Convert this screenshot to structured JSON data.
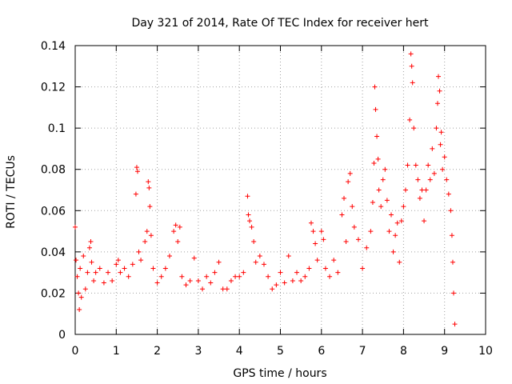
{
  "chart_data": {
    "type": "scatter",
    "title": "Day 321 of 2014, Rate Of TEC Index for receiver hert",
    "xlabel": "GPS time / hours",
    "ylabel": "ROTI / TECUs",
    "xlim": [
      0,
      10
    ],
    "ylim": [
      0,
      0.14
    ],
    "xticks": [
      0,
      1,
      2,
      3,
      4,
      5,
      6,
      7,
      8,
      9,
      10
    ],
    "yticks": [
      0,
      0.02,
      0.04,
      0.06,
      0.08,
      0.1,
      0.12,
      0.14
    ],
    "xtick_labels": [
      "0",
      "1",
      "2",
      "3",
      "4",
      "5",
      "6",
      "7",
      "8",
      "9",
      "10"
    ],
    "ytick_labels": [
      "0",
      "0.02",
      "0.04",
      "0.06",
      "0.08",
      "0.1",
      "0.12",
      "0.14"
    ],
    "grid": true,
    "marker": "+",
    "color": "#ff0000",
    "series": [
      {
        "name": "ROTI",
        "points": [
          [
            0.0,
            0.052
          ],
          [
            0.02,
            0.036
          ],
          [
            0.05,
            0.028
          ],
          [
            0.08,
            0.02
          ],
          [
            0.1,
            0.012
          ],
          [
            0.12,
            0.032
          ],
          [
            0.15,
            0.018
          ],
          [
            0.2,
            0.038
          ],
          [
            0.25,
            0.022
          ],
          [
            0.3,
            0.03
          ],
          [
            0.35,
            0.042
          ],
          [
            0.38,
            0.045
          ],
          [
            0.4,
            0.035
          ],
          [
            0.45,
            0.026
          ],
          [
            0.5,
            0.03
          ],
          [
            0.6,
            0.032
          ],
          [
            0.7,
            0.025
          ],
          [
            0.8,
            0.03
          ],
          [
            0.9,
            0.026
          ],
          [
            1.0,
            0.034
          ],
          [
            1.05,
            0.036
          ],
          [
            1.1,
            0.03
          ],
          [
            1.2,
            0.032
          ],
          [
            1.3,
            0.028
          ],
          [
            1.4,
            0.034
          ],
          [
            1.48,
            0.068
          ],
          [
            1.5,
            0.081
          ],
          [
            1.52,
            0.079
          ],
          [
            1.55,
            0.04
          ],
          [
            1.6,
            0.036
          ],
          [
            1.7,
            0.045
          ],
          [
            1.75,
            0.05
          ],
          [
            1.78,
            0.074
          ],
          [
            1.8,
            0.071
          ],
          [
            1.82,
            0.062
          ],
          [
            1.85,
            0.048
          ],
          [
            1.9,
            0.032
          ],
          [
            2.0,
            0.025
          ],
          [
            2.1,
            0.028
          ],
          [
            2.2,
            0.032
          ],
          [
            2.3,
            0.038
          ],
          [
            2.4,
            0.05
          ],
          [
            2.45,
            0.053
          ],
          [
            2.5,
            0.045
          ],
          [
            2.55,
            0.052
          ],
          [
            2.6,
            0.028
          ],
          [
            2.7,
            0.024
          ],
          [
            2.8,
            0.026
          ],
          [
            2.9,
            0.037
          ],
          [
            3.0,
            0.026
          ],
          [
            3.1,
            0.022
          ],
          [
            3.2,
            0.028
          ],
          [
            3.3,
            0.025
          ],
          [
            3.4,
            0.03
          ],
          [
            3.5,
            0.035
          ],
          [
            3.6,
            0.022
          ],
          [
            3.7,
            0.022
          ],
          [
            3.8,
            0.026
          ],
          [
            3.9,
            0.028
          ],
          [
            4.0,
            0.028
          ],
          [
            4.1,
            0.03
          ],
          [
            4.2,
            0.067
          ],
          [
            4.22,
            0.058
          ],
          [
            4.25,
            0.055
          ],
          [
            4.3,
            0.052
          ],
          [
            4.35,
            0.045
          ],
          [
            4.4,
            0.035
          ],
          [
            4.5,
            0.038
          ],
          [
            4.6,
            0.034
          ],
          [
            4.7,
            0.028
          ],
          [
            4.8,
            0.022
          ],
          [
            4.9,
            0.024
          ],
          [
            5.0,
            0.03
          ],
          [
            5.1,
            0.025
          ],
          [
            5.2,
            0.038
          ],
          [
            5.3,
            0.026
          ],
          [
            5.4,
            0.03
          ],
          [
            5.5,
            0.026
          ],
          [
            5.6,
            0.028
          ],
          [
            5.7,
            0.032
          ],
          [
            5.75,
            0.054
          ],
          [
            5.8,
            0.05
          ],
          [
            5.85,
            0.044
          ],
          [
            5.9,
            0.036
          ],
          [
            6.0,
            0.05
          ],
          [
            6.05,
            0.046
          ],
          [
            6.1,
            0.032
          ],
          [
            6.2,
            0.028
          ],
          [
            6.3,
            0.036
          ],
          [
            6.4,
            0.03
          ],
          [
            6.5,
            0.058
          ],
          [
            6.55,
            0.066
          ],
          [
            6.6,
            0.045
          ],
          [
            6.65,
            0.074
          ],
          [
            6.7,
            0.078
          ],
          [
            6.75,
            0.062
          ],
          [
            6.8,
            0.052
          ],
          [
            6.9,
            0.046
          ],
          [
            7.0,
            0.032
          ],
          [
            7.1,
            0.042
          ],
          [
            7.2,
            0.05
          ],
          [
            7.25,
            0.064
          ],
          [
            7.28,
            0.083
          ],
          [
            7.3,
            0.12
          ],
          [
            7.32,
            0.109
          ],
          [
            7.35,
            0.096
          ],
          [
            7.38,
            0.085
          ],
          [
            7.4,
            0.07
          ],
          [
            7.45,
            0.062
          ],
          [
            7.5,
            0.075
          ],
          [
            7.55,
            0.08
          ],
          [
            7.6,
            0.065
          ],
          [
            7.65,
            0.05
          ],
          [
            7.7,
            0.058
          ],
          [
            7.75,
            0.04
          ],
          [
            7.8,
            0.048
          ],
          [
            7.85,
            0.054
          ],
          [
            7.9,
            0.035
          ],
          [
            7.95,
            0.055
          ],
          [
            8.0,
            0.062
          ],
          [
            8.05,
            0.07
          ],
          [
            8.1,
            0.082
          ],
          [
            8.15,
            0.104
          ],
          [
            8.18,
            0.136
          ],
          [
            8.2,
            0.13
          ],
          [
            8.22,
            0.122
          ],
          [
            8.25,
            0.1
          ],
          [
            8.3,
            0.082
          ],
          [
            8.35,
            0.075
          ],
          [
            8.4,
            0.066
          ],
          [
            8.45,
            0.07
          ],
          [
            8.5,
            0.055
          ],
          [
            8.55,
            0.07
          ],
          [
            8.6,
            0.082
          ],
          [
            8.65,
            0.075
          ],
          [
            8.7,
            0.09
          ],
          [
            8.75,
            0.078
          ],
          [
            8.8,
            0.1
          ],
          [
            8.83,
            0.112
          ],
          [
            8.85,
            0.125
          ],
          [
            8.88,
            0.118
          ],
          [
            8.9,
            0.092
          ],
          [
            8.92,
            0.098
          ],
          [
            8.95,
            0.08
          ],
          [
            9.0,
            0.086
          ],
          [
            9.05,
            0.075
          ],
          [
            9.1,
            0.068
          ],
          [
            9.15,
            0.06
          ],
          [
            9.18,
            0.048
          ],
          [
            9.2,
            0.035
          ],
          [
            9.22,
            0.02
          ],
          [
            9.25,
            0.005
          ]
        ]
      }
    ]
  }
}
